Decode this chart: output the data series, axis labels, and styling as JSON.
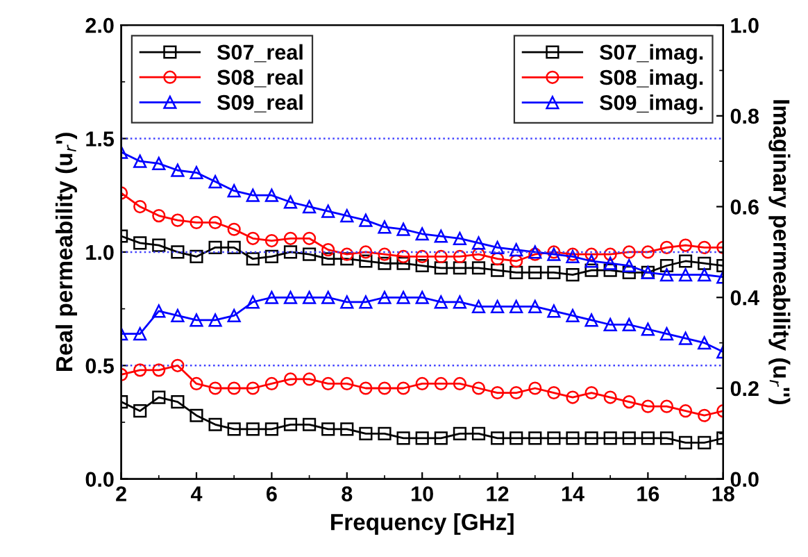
{
  "chart_data": {
    "type": "line",
    "xlabel": "Frequency [GHz]",
    "ylabel": "Real permeability (u$_{r}$')",
    "y2label": "Imaginary permeability (u$_{r}$'')",
    "x": [
      2,
      2.5,
      3,
      3.5,
      4,
      4.5,
      5,
      5.5,
      6,
      6.5,
      7,
      7.5,
      8,
      8.5,
      9,
      9.5,
      10,
      10.5,
      11,
      11.5,
      12,
      12.5,
      13,
      13.5,
      14,
      14.5,
      15,
      15.5,
      16,
      16.5,
      17,
      17.5,
      18
    ],
    "xlim": [
      2,
      18
    ],
    "xticks": [
      2,
      4,
      6,
      8,
      10,
      12,
      14,
      16,
      18
    ],
    "ylim": [
      0,
      2
    ],
    "yticks": [
      {
        "value": 0,
        "label": "0.0"
      },
      0.5,
      {
        "value": 1,
        "label": "1.0"
      },
      1.5,
      {
        "value": 2,
        "label": "2.0"
      }
    ],
    "y2lim": [
      0,
      1
    ],
    "y2ticks": [
      {
        "value": 0,
        "label": "0.0"
      },
      0.2,
      0.4,
      0.6,
      0.8,
      {
        "value": 1,
        "label": "1.0"
      }
    ],
    "grid": false,
    "legend": "top",
    "line_style": "solid",
    "ref_lines": [
      {
        "axis": "y",
        "value": 1.5,
        "color": "#4040ff",
        "line_style": "dotted"
      },
      {
        "axis": "y",
        "value": 1.0,
        "color": "#4040ff",
        "line_style": "dotted"
      },
      {
        "axis": "y",
        "value": 0.5,
        "color": "#4040ff",
        "line_style": "dotted"
      }
    ],
    "series": [
      {
        "name": "S07_real",
        "color": "#000000",
        "marker": "square",
        "values": [
          1.07,
          1.04,
          1.03,
          1.0,
          0.98,
          1.02,
          1.02,
          0.97,
          0.98,
          1.0,
          0.99,
          0.97,
          0.97,
          0.96,
          0.95,
          0.95,
          0.94,
          0.93,
          0.93,
          0.93,
          0.92,
          0.91,
          0.91,
          0.91,
          0.9,
          0.92,
          0.92,
          0.91,
          0.91,
          0.94,
          0.96,
          0.95,
          0.94
        ]
      },
      {
        "name": "S08_real",
        "color": "#ff0000",
        "marker": "circle",
        "values": [
          1.26,
          1.2,
          1.16,
          1.14,
          1.13,
          1.13,
          1.1,
          1.06,
          1.05,
          1.06,
          1.06,
          1.01,
          0.99,
          1.0,
          0.99,
          0.98,
          0.98,
          0.98,
          0.98,
          0.99,
          0.97,
          0.96,
          0.99,
          1.0,
          0.99,
          0.99,
          0.99,
          1.0,
          1.0,
          1.02,
          1.03,
          1.02,
          1.02
        ]
      },
      {
        "name": "S09_real",
        "color": "#0000ff",
        "marker": "triangle",
        "values": [
          1.44,
          1.4,
          1.39,
          1.36,
          1.35,
          1.31,
          1.27,
          1.25,
          1.25,
          1.22,
          1.2,
          1.18,
          1.16,
          1.14,
          1.11,
          1.1,
          1.08,
          1.07,
          1.06,
          1.04,
          1.02,
          1.01,
          1.0,
          0.99,
          0.98,
          0.96,
          0.95,
          0.94,
          0.91,
          0.9,
          0.9,
          0.9,
          0.89
        ]
      },
      {
        "name": "S07_imag.",
        "color": "#000000",
        "marker": "square",
        "axis": "y2",
        "values": [
          0.17,
          0.15,
          0.18,
          0.17,
          0.14,
          0.12,
          0.11,
          0.11,
          0.11,
          0.12,
          0.12,
          0.11,
          0.11,
          0.1,
          0.1,
          0.09,
          0.09,
          0.09,
          0.1,
          0.1,
          0.09,
          0.09,
          0.09,
          0.09,
          0.09,
          0.09,
          0.09,
          0.09,
          0.09,
          0.09,
          0.08,
          0.08,
          0.09
        ]
      },
      {
        "name": "S08_imag.",
        "color": "#ff0000",
        "marker": "circle",
        "axis": "y2",
        "values": [
          0.23,
          0.24,
          0.24,
          0.25,
          0.21,
          0.2,
          0.2,
          0.2,
          0.21,
          0.22,
          0.22,
          0.21,
          0.21,
          0.2,
          0.2,
          0.2,
          0.21,
          0.21,
          0.21,
          0.2,
          0.19,
          0.19,
          0.2,
          0.19,
          0.18,
          0.19,
          0.18,
          0.17,
          0.16,
          0.16,
          0.15,
          0.14,
          0.15
        ]
      },
      {
        "name": "S09_imag.",
        "color": "#0000ff",
        "marker": "triangle",
        "axis": "y2",
        "values": [
          0.32,
          0.32,
          0.37,
          0.36,
          0.35,
          0.35,
          0.36,
          0.39,
          0.4,
          0.4,
          0.4,
          0.4,
          0.39,
          0.39,
          0.4,
          0.4,
          0.4,
          0.39,
          0.39,
          0.38,
          0.38,
          0.38,
          0.38,
          0.37,
          0.36,
          0.35,
          0.34,
          0.34,
          0.33,
          0.32,
          0.31,
          0.3,
          0.28
        ]
      }
    ]
  }
}
